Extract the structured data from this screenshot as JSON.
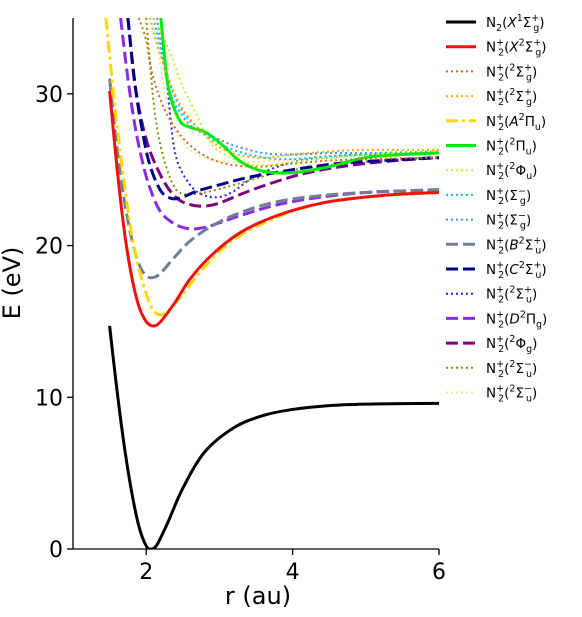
{
  "chart_data": {
    "type": "line",
    "xlabel": "r (au)",
    "ylabel": "E (eV)",
    "xlim": [
      1.0,
      6.0
    ],
    "ylim": [
      0,
      35
    ],
    "xticks": [
      2,
      4,
      6
    ],
    "yticks": [
      0,
      10,
      20,
      30
    ],
    "grid": false,
    "legend_position": "right",
    "series": [
      {
        "name": "N2(X1Σg+)",
        "color": "#000000",
        "dash": "solid",
        "x": [
          1.5,
          1.6,
          1.7,
          1.8,
          1.9,
          2.0,
          2.07,
          2.15,
          2.3,
          2.5,
          2.8,
          3.2,
          3.6,
          4.0,
          4.5,
          5.0,
          5.5,
          6.0
        ],
        "y": [
          14.7,
          10.5,
          6.8,
          3.8,
          1.5,
          0.2,
          0.0,
          0.3,
          1.8,
          4.0,
          6.4,
          8.0,
          8.8,
          9.2,
          9.45,
          9.55,
          9.58,
          9.6
        ]
      },
      {
        "name": "N2+(X2Σg+)",
        "color": "#ee1111",
        "dash": "solid",
        "x": [
          1.5,
          1.6,
          1.7,
          1.8,
          1.9,
          2.0,
          2.1,
          2.2,
          2.4,
          2.6,
          2.9,
          3.3,
          3.8,
          4.4,
          5.0,
          5.5,
          6.0
        ],
        "y": [
          30.2,
          25.2,
          21.0,
          18.0,
          16.0,
          15.0,
          14.7,
          15.0,
          16.3,
          17.8,
          19.4,
          20.9,
          22.0,
          22.8,
          23.2,
          23.4,
          23.5
        ]
      },
      {
        "name": "N2+(2Σg+)",
        "color": "#d2691e",
        "dash": "dotted",
        "x": [
          1.9,
          2.0,
          2.1,
          2.3,
          2.6,
          3.0,
          3.5,
          4.0,
          4.5,
          5.0,
          6.0
        ],
        "y": [
          35,
          33.5,
          31.0,
          28.5,
          26.6,
          25.5,
          25.2,
          25.4,
          25.6,
          25.7,
          25.8
        ]
      },
      {
        "name": "N2+(2Σg+)",
        "color": "#ffa500",
        "dash": "dotted",
        "x": [
          2.05,
          2.2,
          2.5,
          3.0,
          3.5,
          4.0,
          4.5,
          5.0,
          6.0
        ],
        "y": [
          35,
          32.5,
          29.0,
          26.5,
          25.8,
          26.0,
          26.2,
          26.3,
          26.3
        ]
      },
      {
        "name": "N2+(A2Πu)",
        "color": "#ffd700",
        "dash": "dashdot",
        "x": [
          1.45,
          1.6,
          1.8,
          2.0,
          2.15,
          2.3,
          2.5,
          2.8,
          3.2,
          3.8,
          4.4,
          5.0,
          6.0
        ],
        "y": [
          35,
          28.0,
          20.8,
          16.8,
          15.5,
          15.7,
          16.8,
          18.6,
          20.4,
          21.9,
          22.8,
          23.2,
          23.5
        ]
      },
      {
        "name": "N2+(2Πu)",
        "color": "#00ee00",
        "dash": "solid",
        "x": [
          2.2,
          2.3,
          2.45,
          2.6,
          2.8,
          3.0,
          3.3,
          3.6,
          4.0,
          4.5,
          5.0,
          5.5,
          6.0
        ],
        "y": [
          35,
          30.5,
          28.3,
          27.8,
          27.5,
          26.8,
          25.5,
          24.9,
          24.8,
          25.2,
          25.8,
          26.0,
          26.1
        ]
      },
      {
        "name": "N2+(2Φu)",
        "color": "#adff2f",
        "dash": "dotted",
        "x": [
          2.1,
          2.3,
          2.5,
          2.7,
          2.85,
          3.0,
          3.3,
          3.6,
          4.0,
          4.5,
          5.0,
          6.0
        ],
        "y": [
          35,
          33.0,
          30.5,
          28.5,
          27.0,
          26.2,
          25.5,
          25.3,
          25.5,
          25.8,
          26.0,
          26.2
        ]
      },
      {
        "name": "N2+(Σg−)",
        "color": "#00bfff",
        "dash": "dotted",
        "x": [
          2.1,
          2.3,
          2.5,
          2.7,
          2.9,
          3.2,
          3.6,
          4.0,
          4.5,
          5.0,
          6.0
        ],
        "y": [
          35,
          31.0,
          28.8,
          27.8,
          27.0,
          26.3,
          25.8,
          25.7,
          25.9,
          26.0,
          26.1
        ]
      },
      {
        "name": "N2+(Σg−)",
        "color": "#4a90e2",
        "dash": "dotted",
        "x": [
          2.15,
          2.3,
          2.5,
          2.7,
          2.9,
          3.2,
          3.6,
          4.0,
          4.5,
          5.0,
          6.0
        ],
        "y": [
          35,
          30.5,
          28.5,
          27.6,
          27.2,
          26.6,
          26.1,
          26.0,
          26.1,
          26.1,
          26.2
        ]
      },
      {
        "name": "N2+(B2Σu+)",
        "color": "#708090",
        "dash": "dashed",
        "x": [
          1.5,
          1.6,
          1.7,
          1.8,
          1.9,
          2.0,
          2.1,
          2.2,
          2.4,
          2.6,
          2.9,
          3.3,
          3.8,
          4.4,
          5.0,
          5.5,
          6.0
        ],
        "y": [
          31.0,
          26.5,
          23.0,
          20.5,
          18.8,
          18.0,
          17.9,
          18.2,
          19.3,
          20.3,
          21.3,
          22.2,
          22.9,
          23.3,
          23.5,
          23.6,
          23.7
        ]
      },
      {
        "name": "N2+(C2Σu+)",
        "color": "#00008b",
        "dash": "dashed",
        "x": [
          1.75,
          1.85,
          1.95,
          2.05,
          2.2,
          2.35,
          2.5,
          2.7,
          3.0,
          3.4,
          4.0,
          4.6,
          5.2,
          6.0
        ],
        "y": [
          35,
          30.5,
          27.5,
          25.3,
          23.6,
          23.1,
          23.2,
          23.6,
          24.0,
          24.5,
          25.0,
          25.4,
          25.6,
          25.8
        ]
      },
      {
        "name": "N2+(2Σu+)",
        "color": "#2222dd",
        "dash": "dotted",
        "x": [
          2.2,
          2.3,
          2.4,
          2.6,
          2.8,
          3.0,
          3.2,
          3.5,
          4.0,
          4.5,
          5.0,
          6.0
        ],
        "y": [
          35,
          30.0,
          26.0,
          24.0,
          23.3,
          23.2,
          23.6,
          24.6,
          25.5,
          25.8,
          26.0,
          26.1
        ]
      },
      {
        "name": "N2+(D2Πg)",
        "color": "#8a2be2",
        "dash": "dashed",
        "x": [
          1.65,
          1.75,
          1.85,
          1.95,
          2.05,
          2.2,
          2.4,
          2.6,
          2.8,
          3.0,
          3.3,
          3.8,
          4.4,
          5.0,
          5.5,
          6.0
        ],
        "y": [
          35,
          31.0,
          27.8,
          25.5,
          23.8,
          22.2,
          21.4,
          21.1,
          21.2,
          21.5,
          22.0,
          22.7,
          23.2,
          23.5,
          23.6,
          23.6
        ]
      },
      {
        "name": "N2+(2Φg)",
        "color": "#800080",
        "dash": "dashed",
        "x": [
          1.75,
          1.85,
          2.0,
          2.2,
          2.4,
          2.6,
          2.8,
          3.0,
          3.3,
          3.7,
          4.2,
          4.8,
          5.4,
          6.0
        ],
        "y": [
          35,
          30.5,
          27.0,
          24.6,
          23.2,
          22.7,
          22.6,
          22.8,
          23.4,
          24.1,
          24.8,
          25.3,
          25.6,
          25.8
        ]
      },
      {
        "name": "N2+(2Σu−)",
        "color": "#8b8b00",
        "dash": "dotted",
        "x": [
          2.0,
          2.1,
          2.2,
          2.35,
          2.5,
          2.8,
          3.2,
          3.8,
          4.5,
          5.2,
          6.0
        ],
        "y": [
          35,
          29.5,
          26.5,
          24.2,
          23.4,
          23.5,
          24.0,
          24.8,
          25.3,
          25.6,
          25.8
        ]
      },
      {
        "name": "N2+(2Σu−)",
        "color": "#f0e68c",
        "dash": "dotted",
        "x": [
          2.1,
          2.3,
          2.5,
          2.8,
          3.2,
          3.8,
          4.5,
          5.2,
          6.0
        ],
        "y": [
          35,
          29.0,
          26.8,
          25.8,
          25.5,
          25.6,
          25.8,
          25.9,
          26.0
        ]
      }
    ],
    "legend_entries": [
      {
        "base": "N",
        "sub": "2",
        "sup": "",
        "state_pre": "(",
        "state_letter": "X",
        "state_letter_sup": "1",
        "state_sym": "Σ",
        "state_sub": "g",
        "state_sup": "+",
        "post": ")"
      },
      {
        "base": "N",
        "sub": "2",
        "sup": "+",
        "state_pre": "(",
        "state_letter": "X",
        "state_letter_sup": "2",
        "state_sym": "Σ",
        "state_sub": "g",
        "state_sup": "+",
        "post": ")"
      },
      {
        "base": "N",
        "sub": "2",
        "sup": "+",
        "state_pre": "(",
        "state_letter": "",
        "state_letter_sup": "2",
        "state_sym": "Σ",
        "state_sub": "g",
        "state_sup": "+",
        "post": ")"
      },
      {
        "base": "N",
        "sub": "2",
        "sup": "+",
        "state_pre": "(",
        "state_letter": "",
        "state_letter_sup": "2",
        "state_sym": "Σ",
        "state_sub": "g",
        "state_sup": "+",
        "post": ")"
      },
      {
        "base": "N",
        "sub": "2",
        "sup": "+",
        "state_pre": "(",
        "state_letter": "A",
        "state_letter_sup": "2",
        "state_sym": "Π",
        "state_sub": "u",
        "state_sup": "",
        "post": ")"
      },
      {
        "base": "N",
        "sub": "2",
        "sup": "+",
        "state_pre": "(",
        "state_letter": "",
        "state_letter_sup": "2",
        "state_sym": "Π",
        "state_sub": "u",
        "state_sup": "",
        "post": ")"
      },
      {
        "base": "N",
        "sub": "2",
        "sup": "+",
        "state_pre": "(",
        "state_letter": "",
        "state_letter_sup": "2",
        "state_sym": "Φ",
        "state_sub": "u",
        "state_sup": "",
        "post": ")"
      },
      {
        "base": "N",
        "sub": "2",
        "sup": "+",
        "state_pre": "(",
        "state_letter": "",
        "state_letter_sup": "",
        "state_sym": "Σ",
        "state_sub": "g",
        "state_sup": "−",
        "post": ")"
      },
      {
        "base": "N",
        "sub": "2",
        "sup": "+",
        "state_pre": "(",
        "state_letter": "",
        "state_letter_sup": "",
        "state_sym": "Σ",
        "state_sub": "g",
        "state_sup": "−",
        "post": ")"
      },
      {
        "base": "N",
        "sub": "2",
        "sup": "+",
        "state_pre": "(",
        "state_letter": "B",
        "state_letter_sup": "2",
        "state_sym": "Σ",
        "state_sub": "u",
        "state_sup": "+",
        "post": ")"
      },
      {
        "base": "N",
        "sub": "2",
        "sup": "+",
        "state_pre": "(",
        "state_letter": "C",
        "state_letter_sup": "2",
        "state_sym": "Σ",
        "state_sub": "u",
        "state_sup": "+",
        "post": ")"
      },
      {
        "base": "N",
        "sub": "2",
        "sup": "+",
        "state_pre": "(",
        "state_letter": "",
        "state_letter_sup": "2",
        "state_sym": "Σ",
        "state_sub": "u",
        "state_sup": "+",
        "post": ")"
      },
      {
        "base": "N",
        "sub": "2",
        "sup": "+",
        "state_pre": "(",
        "state_letter": "D",
        "state_letter_sup": "2",
        "state_sym": "Π",
        "state_sub": "g",
        "state_sup": "",
        "post": ")"
      },
      {
        "base": "N",
        "sub": "2",
        "sup": "+",
        "state_pre": "(",
        "state_letter": "",
        "state_letter_sup": "2",
        "state_sym": "Φ",
        "state_sub": "g",
        "state_sup": "",
        "post": ")"
      },
      {
        "base": "N",
        "sub": "2",
        "sup": "+",
        "state_pre": "(",
        "state_letter": "",
        "state_letter_sup": "2",
        "state_sym": "Σ",
        "state_sub": "u",
        "state_sup": "−",
        "post": ")"
      },
      {
        "base": "N",
        "sub": "2",
        "sup": "+",
        "state_pre": "(",
        "state_letter": "",
        "state_letter_sup": "2",
        "state_sym": "Σ",
        "state_sub": "u",
        "state_sup": "−",
        "post": ")"
      }
    ]
  }
}
